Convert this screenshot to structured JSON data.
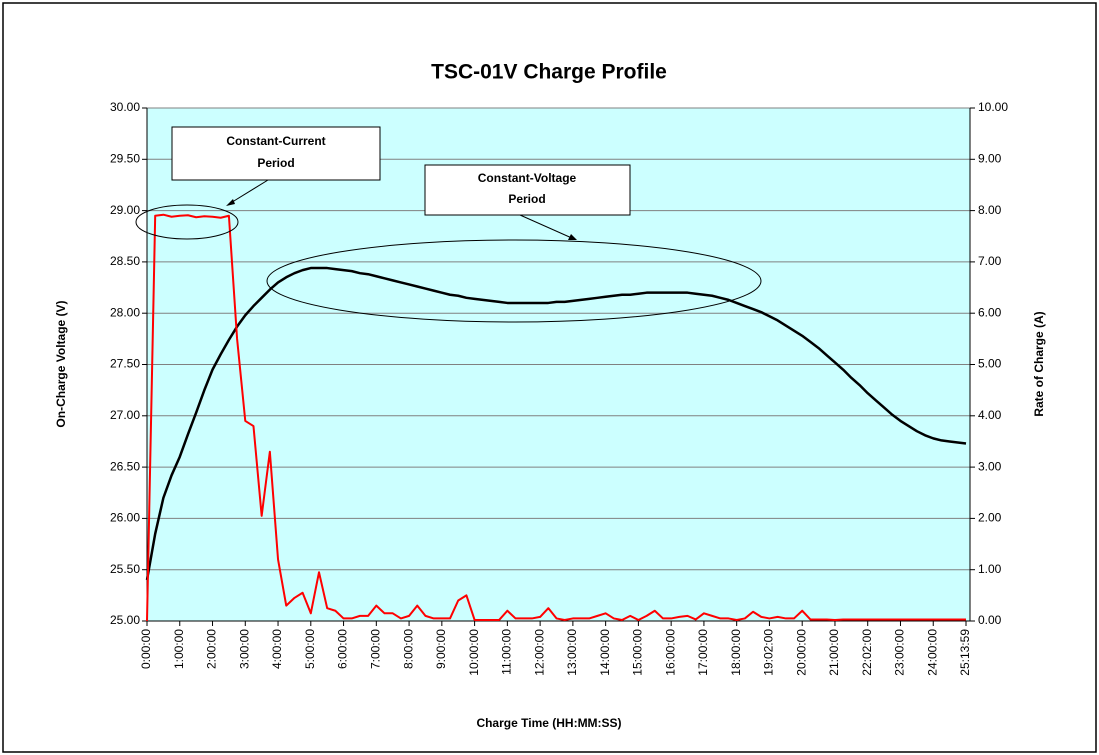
{
  "chart_data": {
    "type": "line",
    "title": "TSC-01V Charge Profile",
    "x_label": "Charge Time (HH:MM:SS)",
    "y_label": "On-Charge Voltage (V)",
    "y2_label": "Rate of Charge (A)",
    "categories": [
      "0:00:00",
      null,
      null,
      null,
      "1:00:00",
      null,
      null,
      null,
      "2:00:00",
      null,
      null,
      null,
      "3:00:00",
      null,
      null,
      null,
      "4:00:00",
      null,
      null,
      null,
      "5:00:00",
      null,
      null,
      null,
      "6:00:00",
      null,
      null,
      null,
      "7:00:00",
      null,
      null,
      null,
      "8:00:00",
      null,
      null,
      null,
      "9:00:00",
      null,
      null,
      null,
      "10:00:00",
      null,
      null,
      null,
      "11:00:00",
      null,
      null,
      null,
      "12:00:00",
      null,
      null,
      null,
      "13:00:00",
      null,
      null,
      null,
      "14:00:00",
      null,
      null,
      null,
      "15:00:00",
      null,
      null,
      null,
      "16:00:00",
      null,
      null,
      null,
      "17:00:00",
      null,
      null,
      null,
      "18:00:00",
      null,
      null,
      null,
      "19:02:00",
      null,
      null,
      null,
      "20:00:00",
      null,
      null,
      null,
      "21:00:00",
      null,
      null,
      null,
      "22:02:00",
      null,
      null,
      null,
      "23:00:00",
      null,
      null,
      null,
      "24:00:00",
      null,
      null,
      null,
      "25:13:59"
    ],
    "series": [
      {
        "name": "On-Charge Voltage",
        "color": "#000000",
        "axis": "y",
        "values": [
          25.4,
          25.85,
          26.2,
          26.42,
          26.6,
          26.82,
          27.03,
          27.25,
          27.45,
          27.6,
          27.74,
          27.87,
          27.98,
          28.07,
          28.15,
          28.23,
          28.3,
          28.35,
          28.39,
          28.42,
          28.44,
          28.44,
          28.44,
          28.43,
          28.42,
          28.41,
          28.39,
          28.38,
          28.36,
          28.34,
          28.32,
          28.3,
          28.28,
          28.26,
          28.24,
          28.22,
          28.2,
          28.18,
          28.17,
          28.15,
          28.14,
          28.13,
          28.12,
          28.11,
          28.1,
          28.1,
          28.1,
          28.1,
          28.1,
          28.1,
          28.11,
          28.11,
          28.12,
          28.13,
          28.14,
          28.15,
          28.16,
          28.17,
          28.18,
          28.18,
          28.19,
          28.2,
          28.2,
          28.2,
          28.2,
          28.2,
          28.2,
          28.19,
          28.18,
          28.17,
          28.15,
          28.13,
          28.1,
          28.07,
          28.04,
          28.01,
          27.97,
          27.93,
          27.88,
          27.83,
          27.78,
          27.72,
          27.66,
          27.59,
          27.52,
          27.45,
          27.37,
          27.3,
          27.22,
          27.15,
          27.08,
          27.01,
          26.95,
          26.9,
          26.85,
          26.81,
          26.78,
          26.76,
          26.75,
          26.74,
          26.73
        ]
      },
      {
        "name": "Rate of Charge",
        "color": "#ff0000",
        "axis": "y2",
        "values": [
          0,
          7.9,
          7.92,
          7.88,
          7.9,
          7.91,
          7.87,
          7.89,
          7.88,
          7.86,
          7.9,
          5.5,
          3.9,
          3.8,
          2.05,
          3.3,
          1.2,
          0.3,
          0.45,
          0.55,
          0.15,
          0.95,
          0.25,
          0.2,
          0.05,
          0.05,
          0.1,
          0.1,
          0.3,
          0.15,
          0.15,
          0.05,
          0.1,
          0.3,
          0.1,
          0.05,
          0.05,
          0.05,
          0.4,
          0.5,
          0.02,
          0.02,
          0.02,
          0.02,
          0.2,
          0.05,
          0.05,
          0.05,
          0.08,
          0.25,
          0.05,
          0.02,
          0.05,
          0.05,
          0.05,
          0.1,
          0.15,
          0.05,
          0.02,
          0.1,
          0.02,
          0.1,
          0.2,
          0.05,
          0.05,
          0.08,
          0.1,
          0.03,
          0.15,
          0.1,
          0.05,
          0.05,
          0.02,
          0.05,
          0.18,
          0.08,
          0.05,
          0.08,
          0.05,
          0.05,
          0.2,
          0.03,
          0.03,
          0.03,
          0.02,
          0.03,
          0.03,
          0.03,
          0.03,
          0.03,
          0.03,
          0.03,
          0.03,
          0.03,
          0.03,
          0.03,
          0.03,
          0.03,
          0.03,
          0.03,
          0.03
        ]
      }
    ],
    "ylim": [
      25,
      30
    ],
    "yticks": [
      {
        "value": 25,
        "label": "25.00"
      },
      {
        "value": 25.5,
        "label": "25.50"
      },
      {
        "value": 26,
        "label": "26.00"
      },
      {
        "value": 26.5,
        "label": "26.50"
      },
      {
        "value": 27,
        "label": "27.00"
      },
      {
        "value": 27.5,
        "label": "27.50"
      },
      {
        "value": 28,
        "label": "28.00"
      },
      {
        "value": 28.5,
        "label": "28.50"
      },
      {
        "value": 29,
        "label": "29.00"
      },
      {
        "value": 29.5,
        "label": "29.50"
      },
      {
        "value": 30,
        "label": "30.00"
      }
    ],
    "y2lim": [
      0,
      10
    ],
    "y2ticks": [
      {
        "value": 0,
        "label": "0.00"
      },
      {
        "value": 1,
        "label": "1.00"
      },
      {
        "value": 2,
        "label": "2.00"
      },
      {
        "value": 3,
        "label": "3.00"
      },
      {
        "value": 4,
        "label": "4.00"
      },
      {
        "value": 5,
        "label": "5.00"
      },
      {
        "value": 6,
        "label": "6.00"
      },
      {
        "value": 7,
        "label": "7.00"
      },
      {
        "value": 8,
        "label": "8.00"
      },
      {
        "value": 9,
        "label": "9.00"
      },
      {
        "value": 10,
        "label": "10.00"
      }
    ],
    "grid": true,
    "annotations": [
      {
        "text": [
          "Constant-Current",
          "Period"
        ]
      },
      {
        "text": [
          "Constant-Voltage",
          "Period"
        ]
      }
    ]
  }
}
